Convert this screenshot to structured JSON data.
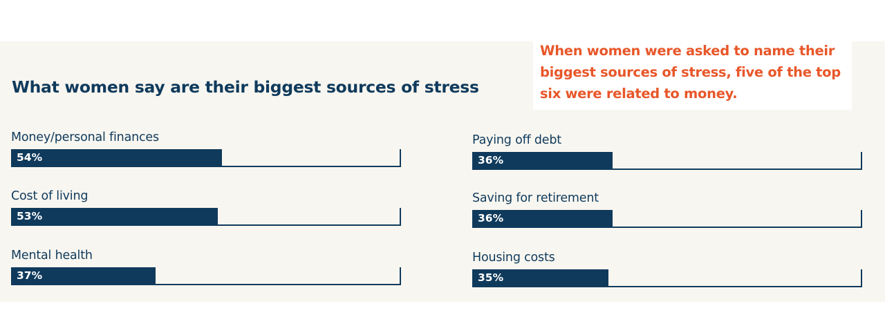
{
  "callout": {
    "lines": [
      "When women were asked to name their",
      "biggest sources of stress, five of the top",
      "six were related to money."
    ]
  },
  "chart_data": {
    "type": "bar",
    "title": "What women say are their biggest sources of stress",
    "xlim": [
      0,
      100
    ],
    "categories": [
      "Money/personal finances",
      "Cost of living",
      "Mental health",
      "Paying off debt",
      "Saving for retirement",
      "Housing costs"
    ],
    "values": [
      54,
      53,
      37,
      36,
      36,
      35
    ],
    "value_labels": [
      "54%",
      "53%",
      "37%",
      "36%",
      "36%",
      "35%"
    ],
    "bar_color": "#0f3a5c",
    "accent_color": "#e8572a"
  }
}
